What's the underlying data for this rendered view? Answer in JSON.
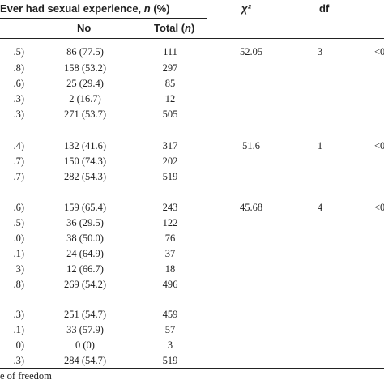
{
  "header": {
    "ever_had": "Ever had sexual experience, ",
    "ever_had_n": "n",
    "ever_had_pct": " (%)",
    "chi2": "χ²",
    "df": "df",
    "no": "No",
    "total": "Total (",
    "total_n": "n",
    "total_close": ")"
  },
  "rows": [
    {
      "c0": ".5)",
      "no": "86 (77.5)",
      "total": "111",
      "chi": "52.05",
      "df": "3",
      "p": "<0"
    },
    {
      "c0": ".8)",
      "no": "158 (53.2)",
      "total": "297",
      "chi": "",
      "df": "",
      "p": ""
    },
    {
      "c0": ".6)",
      "no": "25 (29.4)",
      "total": "85",
      "chi": "",
      "df": "",
      "p": ""
    },
    {
      "c0": ".3)",
      "no": "2 (16.7)",
      "total": "12",
      "chi": "",
      "df": "",
      "p": ""
    },
    {
      "c0": ".3)",
      "no": "271 (53.7)",
      "total": "505",
      "chi": "",
      "df": "",
      "p": ""
    },
    {
      "c0": ".4)",
      "no": "132 (41.6)",
      "total": "317",
      "chi": "51.6",
      "df": "1",
      "p": "<0"
    },
    {
      "c0": ".7)",
      "no": "150 (74.3)",
      "total": "202",
      "chi": "",
      "df": "",
      "p": ""
    },
    {
      "c0": ".7)",
      "no": "282 (54.3)",
      "total": "519",
      "chi": "",
      "df": "",
      "p": ""
    },
    {
      "c0": ".6)",
      "no": "159 (65.4)",
      "total": "243",
      "chi": "45.68",
      "df": "4",
      "p": "<0"
    },
    {
      "c0": ".5)",
      "no": "36 (29.5)",
      "total": "122",
      "chi": "",
      "df": "",
      "p": ""
    },
    {
      "c0": ".0)",
      "no": "38 (50.0)",
      "total": "76",
      "chi": "",
      "df": "",
      "p": ""
    },
    {
      "c0": ".1)",
      "no": "24 (64.9)",
      "total": "37",
      "chi": "",
      "df": "",
      "p": ""
    },
    {
      "c0": "3)",
      "no": "12 (66.7)",
      "total": "18",
      "chi": "",
      "df": "",
      "p": ""
    },
    {
      "c0": ".8)",
      "no": "269 (54.2)",
      "total": "496",
      "chi": "",
      "df": "",
      "p": ""
    },
    {
      "c0": ".3)",
      "no": "251 (54.7)",
      "total": "459",
      "chi": "",
      "df": "",
      "p": ""
    },
    {
      "c0": ".1)",
      "no": "33 (57.9)",
      "total": "57",
      "chi": "",
      "df": "",
      "p": ""
    },
    {
      "c0": "0)",
      "no": "0 (0)",
      "total": "3",
      "chi": "",
      "df": "",
      "p": ""
    },
    {
      "c0": ".3)",
      "no": "284 (54.7)",
      "total": "519",
      "chi": "",
      "df": "",
      "p": ""
    }
  ],
  "footnote": "e of freedom"
}
